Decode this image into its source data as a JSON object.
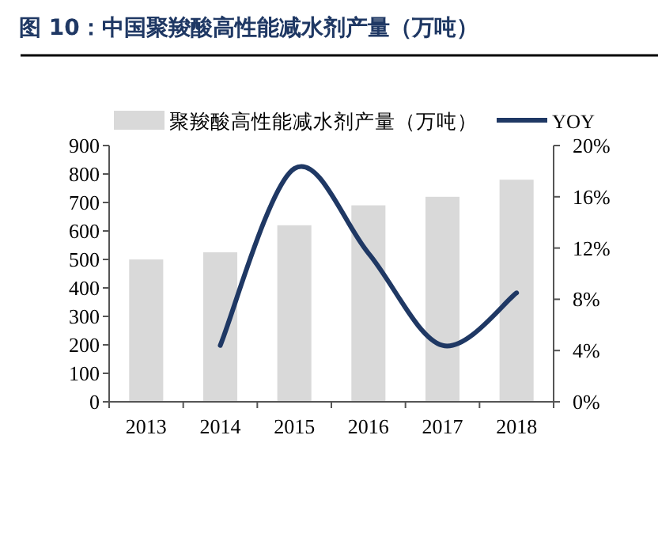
{
  "chart_data": {
    "type": "bar",
    "title": "图 10：中国聚羧酸高性能减水剂产量（万吨）",
    "categories": [
      "2013",
      "2014",
      "2015",
      "2016",
      "2017",
      "2018"
    ],
    "series": [
      {
        "name": "聚羧酸高性能减水剂产量（万吨）",
        "color": "#d9d9d9",
        "values": [
          500,
          525,
          620,
          690,
          720,
          780
        ]
      },
      {
        "name": "YOY",
        "type": "line",
        "axis": "y2",
        "color": "#1f3864",
        "values": [
          null,
          4.4,
          18.2,
          11.6,
          4.4,
          8.5
        ]
      }
    ],
    "ylim": [
      0,
      900
    ],
    "yticks": [
      0,
      100,
      200,
      300,
      400,
      500,
      600,
      700,
      800,
      900
    ],
    "y2lim": [
      0,
      20
    ],
    "y2ticks": [
      {
        "value": 0,
        "label": "0%"
      },
      {
        "value": 4,
        "label": "4%"
      },
      {
        "value": 8,
        "label": "8%"
      },
      {
        "value": 12,
        "label": "12%"
      },
      {
        "value": 16,
        "label": "16%"
      },
      {
        "value": 20,
        "label": "20%"
      }
    ],
    "legend": "top",
    "grid": false
  }
}
